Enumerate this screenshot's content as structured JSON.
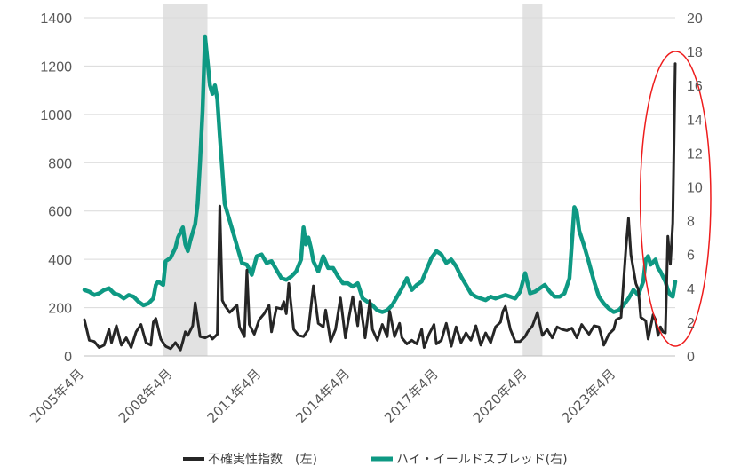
{
  "chart_data": {
    "type": "line",
    "title": "",
    "x_range": [
      "2005-04",
      "2025-04"
    ],
    "x_tick_labels": [
      "2005年4月",
      "2008年4月",
      "2011年4月",
      "2014年4月",
      "2017年4月",
      "2020年4月",
      "2023年4月"
    ],
    "y_left": {
      "min": 0,
      "max": 1400,
      "ticks": [
        0,
        200,
        400,
        600,
        800,
        1000,
        1200,
        1400
      ]
    },
    "y_right": {
      "min": 0,
      "max": 20,
      "ticks": [
        0,
        2,
        4,
        6,
        8,
        10,
        12,
        14,
        16,
        18,
        20
      ]
    },
    "grid": "horizontal",
    "legend_position": "bottom",
    "shaded_periods": [
      {
        "start": "2007-12",
        "end": "2009-06"
      },
      {
        "start": "2020-02",
        "end": "2020-10"
      }
    ],
    "highlight_oval": {
      "start": "2024-09",
      "end": "2025-04",
      "shape": "ellipse",
      "color": "#ee1c1c"
    },
    "series": [
      {
        "name": "不確実性指数　(左)",
        "axis": "left",
        "color": "#262626",
        "points": [
          [
            "2005-04",
            150
          ],
          [
            "2005-06",
            65
          ],
          [
            "2005-08",
            60
          ],
          [
            "2005-10",
            35
          ],
          [
            "2005-12",
            45
          ],
          [
            "2006-02",
            110
          ],
          [
            "2006-03",
            55
          ],
          [
            "2006-05",
            125
          ],
          [
            "2006-07",
            45
          ],
          [
            "2006-09",
            75
          ],
          [
            "2006-11",
            35
          ],
          [
            "2007-01",
            100
          ],
          [
            "2007-03",
            130
          ],
          [
            "2007-05",
            55
          ],
          [
            "2007-07",
            45
          ],
          [
            "2007-08",
            140
          ],
          [
            "2007-09",
            155
          ],
          [
            "2007-11",
            70
          ],
          [
            "2008-01",
            40
          ],
          [
            "2008-03",
            30
          ],
          [
            "2008-05",
            55
          ],
          [
            "2008-07",
            25
          ],
          [
            "2008-08",
            60
          ],
          [
            "2008-09",
            100
          ],
          [
            "2008-10",
            85
          ],
          [
            "2008-12",
            125
          ],
          [
            "2009-01",
            220
          ],
          [
            "2009-02",
            150
          ],
          [
            "2009-03",
            80
          ],
          [
            "2009-05",
            75
          ],
          [
            "2009-07",
            85
          ],
          [
            "2009-08",
            70
          ],
          [
            "2009-10",
            90
          ],
          [
            "2009-11",
            620
          ],
          [
            "2009-12",
            230
          ],
          [
            "2010-01",
            210
          ],
          [
            "2010-03",
            180
          ],
          [
            "2010-05",
            200
          ],
          [
            "2010-06",
            210
          ],
          [
            "2010-07",
            120
          ],
          [
            "2010-09",
            80
          ],
          [
            "2010-10",
            355
          ],
          [
            "2010-11",
            130
          ],
          [
            "2011-01",
            90
          ],
          [
            "2011-03",
            150
          ],
          [
            "2011-05",
            175
          ],
          [
            "2011-07",
            210
          ],
          [
            "2011-08",
            100
          ],
          [
            "2011-10",
            200
          ],
          [
            "2011-12",
            195
          ],
          [
            "2012-01",
            225
          ],
          [
            "2012-02",
            175
          ],
          [
            "2012-03",
            300
          ],
          [
            "2012-05",
            110
          ],
          [
            "2012-07",
            85
          ],
          [
            "2012-09",
            80
          ],
          [
            "2012-11",
            110
          ],
          [
            "2013-01",
            290
          ],
          [
            "2013-03",
            135
          ],
          [
            "2013-05",
            120
          ],
          [
            "2013-06",
            190
          ],
          [
            "2013-08",
            60
          ],
          [
            "2013-10",
            110
          ],
          [
            "2013-12",
            240
          ],
          [
            "2014-02",
            75
          ],
          [
            "2014-03",
            135
          ],
          [
            "2014-05",
            245
          ],
          [
            "2014-07",
            125
          ],
          [
            "2014-08",
            225
          ],
          [
            "2014-10",
            75
          ],
          [
            "2014-12",
            230
          ],
          [
            "2015-01",
            110
          ],
          [
            "2015-03",
            65
          ],
          [
            "2015-05",
            130
          ],
          [
            "2015-07",
            80
          ],
          [
            "2015-08",
            185
          ],
          [
            "2015-10",
            80
          ],
          [
            "2015-12",
            135
          ],
          [
            "2016-01",
            75
          ],
          [
            "2016-03",
            50
          ],
          [
            "2016-05",
            65
          ],
          [
            "2016-07",
            50
          ],
          [
            "2016-09",
            110
          ],
          [
            "2016-10",
            35
          ],
          [
            "2016-12",
            90
          ],
          [
            "2017-02",
            130
          ],
          [
            "2017-03",
            50
          ],
          [
            "2017-05",
            65
          ],
          [
            "2017-07",
            135
          ],
          [
            "2017-09",
            40
          ],
          [
            "2017-11",
            120
          ],
          [
            "2018-01",
            55
          ],
          [
            "2018-03",
            95
          ],
          [
            "2018-05",
            65
          ],
          [
            "2018-07",
            125
          ],
          [
            "2018-09",
            45
          ],
          [
            "2018-11",
            95
          ],
          [
            "2019-01",
            55
          ],
          [
            "2019-03",
            120
          ],
          [
            "2019-05",
            140
          ],
          [
            "2019-06",
            185
          ],
          [
            "2019-07",
            205
          ],
          [
            "2019-09",
            110
          ],
          [
            "2019-11",
            60
          ],
          [
            "2020-01",
            60
          ],
          [
            "2020-03",
            80
          ],
          [
            "2020-04",
            100
          ],
          [
            "2020-06",
            125
          ],
          [
            "2020-08",
            180
          ],
          [
            "2020-10",
            85
          ],
          [
            "2020-12",
            110
          ],
          [
            "2021-02",
            75
          ],
          [
            "2021-04",
            120
          ],
          [
            "2021-06",
            110
          ],
          [
            "2021-08",
            105
          ],
          [
            "2021-10",
            115
          ],
          [
            "2021-12",
            75
          ],
          [
            "2022-02",
            130
          ],
          [
            "2022-03",
            115
          ],
          [
            "2022-05",
            90
          ],
          [
            "2022-07",
            125
          ],
          [
            "2022-09",
            120
          ],
          [
            "2022-11",
            45
          ],
          [
            "2023-01",
            90
          ],
          [
            "2023-03",
            110
          ],
          [
            "2023-04",
            150
          ],
          [
            "2023-06",
            160
          ],
          [
            "2023-08",
            450
          ],
          [
            "2023-09",
            570
          ],
          [
            "2023-10",
            420
          ],
          [
            "2023-12",
            300
          ],
          [
            "2024-01",
            275
          ],
          [
            "2024-02",
            160
          ],
          [
            "2024-04",
            145
          ],
          [
            "2024-05",
            70
          ],
          [
            "2024-07",
            170
          ],
          [
            "2024-08",
            150
          ],
          [
            "2024-09",
            85
          ],
          [
            "2024-10",
            120
          ],
          [
            "2024-11",
            100
          ],
          [
            "2024-12",
            95
          ],
          [
            "2025-01",
            495
          ],
          [
            "2025-02",
            380
          ],
          [
            "2025-03",
            550
          ],
          [
            "2025-04",
            1210
          ]
        ]
      },
      {
        "name": "ハイ・イールドスプレッド(右)",
        "axis": "right",
        "color": "#0e9983",
        "points": [
          [
            "2005-04",
            3.9
          ],
          [
            "2005-06",
            3.8
          ],
          [
            "2005-08",
            3.6
          ],
          [
            "2005-10",
            3.7
          ],
          [
            "2005-12",
            3.9
          ],
          [
            "2006-02",
            4.0
          ],
          [
            "2006-04",
            3.7
          ],
          [
            "2006-06",
            3.6
          ],
          [
            "2006-08",
            3.4
          ],
          [
            "2006-10",
            3.6
          ],
          [
            "2006-12",
            3.5
          ],
          [
            "2007-02",
            3.2
          ],
          [
            "2007-04",
            3.0
          ],
          [
            "2007-06",
            3.1
          ],
          [
            "2007-08",
            3.4
          ],
          [
            "2007-09",
            4.2
          ],
          [
            "2007-10",
            4.4
          ],
          [
            "2007-12",
            4.2
          ],
          [
            "2008-01",
            5.6
          ],
          [
            "2008-03",
            5.8
          ],
          [
            "2008-05",
            6.4
          ],
          [
            "2008-06",
            7.0
          ],
          [
            "2008-08",
            7.6
          ],
          [
            "2008-09",
            6.6
          ],
          [
            "2008-10",
            6.2
          ],
          [
            "2008-11",
            6.8
          ],
          [
            "2008-12",
            7.3
          ],
          [
            "2009-01",
            7.8
          ],
          [
            "2009-02",
            9.0
          ],
          [
            "2009-03",
            11.5
          ],
          [
            "2009-04",
            14.5
          ],
          [
            "2009-05",
            18.9
          ],
          [
            "2009-06",
            17.5
          ],
          [
            "2009-07",
            16.0
          ],
          [
            "2009-08",
            15.5
          ],
          [
            "2009-09",
            16.0
          ],
          [
            "2009-10",
            15.2
          ],
          [
            "2009-11",
            13.0
          ],
          [
            "2009-12",
            11.0
          ],
          [
            "2010-01",
            9.0
          ],
          [
            "2010-03",
            8.0
          ],
          [
            "2010-04",
            7.5
          ],
          [
            "2010-06",
            6.5
          ],
          [
            "2010-08",
            5.5
          ],
          [
            "2010-10",
            5.4
          ],
          [
            "2010-12",
            4.8
          ],
          [
            "2011-02",
            5.9
          ],
          [
            "2011-04",
            6.0
          ],
          [
            "2011-06",
            5.5
          ],
          [
            "2011-08",
            5.6
          ],
          [
            "2011-10",
            5.1
          ],
          [
            "2011-12",
            4.6
          ],
          [
            "2012-02",
            4.5
          ],
          [
            "2012-04",
            4.7
          ],
          [
            "2012-06",
            5.0
          ],
          [
            "2012-08",
            5.7
          ],
          [
            "2012-09",
            7.6
          ],
          [
            "2012-10",
            6.6
          ],
          [
            "2012-11",
            7.0
          ],
          [
            "2012-12",
            6.4
          ],
          [
            "2013-01",
            5.6
          ],
          [
            "2013-03",
            5.0
          ],
          [
            "2013-05",
            5.9
          ],
          [
            "2013-07",
            5.2
          ],
          [
            "2013-09",
            5.2
          ],
          [
            "2013-11",
            4.7
          ],
          [
            "2014-01",
            4.3
          ],
          [
            "2014-03",
            4.3
          ],
          [
            "2014-05",
            4.1
          ],
          [
            "2014-07",
            4.3
          ],
          [
            "2014-09",
            3.4
          ],
          [
            "2014-11",
            3.2
          ],
          [
            "2015-01",
            3.0
          ],
          [
            "2015-03",
            2.7
          ],
          [
            "2015-05",
            2.6
          ],
          [
            "2015-07",
            2.7
          ],
          [
            "2015-09",
            3.0
          ],
          [
            "2015-11",
            3.5
          ],
          [
            "2016-01",
            4.0
          ],
          [
            "2016-03",
            4.6
          ],
          [
            "2016-05",
            3.9
          ],
          [
            "2016-07",
            4.2
          ],
          [
            "2016-09",
            4.4
          ],
          [
            "2016-11",
            5.1
          ],
          [
            "2017-01",
            5.8
          ],
          [
            "2017-03",
            6.2
          ],
          [
            "2017-05",
            6.0
          ],
          [
            "2017-07",
            5.5
          ],
          [
            "2017-09",
            5.7
          ],
          [
            "2017-11",
            5.3
          ],
          [
            "2018-01",
            4.7
          ],
          [
            "2018-03",
            4.2
          ],
          [
            "2018-05",
            3.7
          ],
          [
            "2018-07",
            3.5
          ],
          [
            "2018-09",
            3.4
          ],
          [
            "2018-11",
            3.3
          ],
          [
            "2019-01",
            3.5
          ],
          [
            "2019-03",
            3.4
          ],
          [
            "2019-05",
            3.5
          ],
          [
            "2019-07",
            3.6
          ],
          [
            "2019-09",
            3.5
          ],
          [
            "2019-11",
            3.4
          ],
          [
            "2020-01",
            3.8
          ],
          [
            "2020-03",
            4.9
          ],
          [
            "2020-05",
            3.7
          ],
          [
            "2020-07",
            3.8
          ],
          [
            "2020-09",
            4.0
          ],
          [
            "2020-11",
            4.2
          ],
          [
            "2021-01",
            3.8
          ],
          [
            "2021-03",
            3.5
          ],
          [
            "2021-05",
            3.5
          ],
          [
            "2021-07",
            3.7
          ],
          [
            "2021-09",
            4.6
          ],
          [
            "2021-11",
            8.8
          ],
          [
            "2021-12",
            8.5
          ],
          [
            "2022-01",
            7.4
          ],
          [
            "2022-03",
            6.5
          ],
          [
            "2022-05",
            5.5
          ],
          [
            "2022-07",
            4.4
          ],
          [
            "2022-09",
            3.5
          ],
          [
            "2022-11",
            3.1
          ],
          [
            "2023-01",
            2.8
          ],
          [
            "2023-03",
            2.6
          ],
          [
            "2023-05",
            2.7
          ],
          [
            "2023-07",
            3.0
          ],
          [
            "2023-09",
            3.4
          ],
          [
            "2023-11",
            3.9
          ],
          [
            "2024-01",
            3.6
          ],
          [
            "2024-03",
            4.4
          ],
          [
            "2024-04",
            5.7
          ],
          [
            "2024-05",
            5.9
          ],
          [
            "2024-06",
            5.4
          ],
          [
            "2024-08",
            5.7
          ],
          [
            "2024-09",
            5.2
          ],
          [
            "2024-10",
            5.0
          ],
          [
            "2024-11",
            4.7
          ],
          [
            "2024-12",
            4.4
          ],
          [
            "2025-01",
            3.9
          ],
          [
            "2025-02",
            3.6
          ],
          [
            "2025-03",
            3.5
          ],
          [
            "2025-04",
            4.4
          ]
        ]
      }
    ]
  }
}
